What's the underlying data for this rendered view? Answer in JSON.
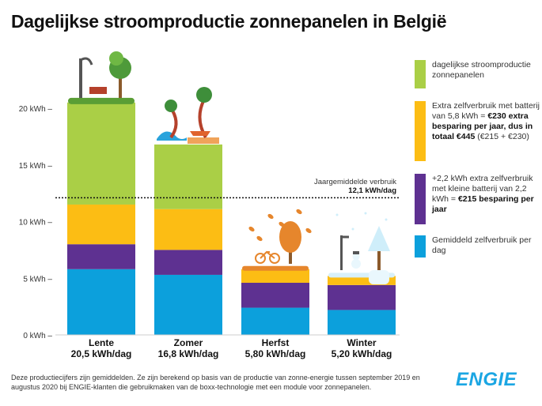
{
  "title": "Dagelijkse stroomproductie zonnepanelen in België",
  "chart_data": {
    "type": "bar",
    "stacked": true,
    "title": "Dagelijkse stroomproductie zonnepanelen in België",
    "ylim": [
      0,
      22
    ],
    "yticks": [
      0,
      5,
      10,
      15,
      20
    ],
    "ytick_labels": [
      "0 kWh –",
      "5 kWh –",
      "10 kWh –",
      "15 kWh –",
      "20 kWh –"
    ],
    "categories": [
      "Lente",
      "Zomer",
      "Herfst",
      "Winter"
    ],
    "category_totals": [
      "20,5 kWh/dag",
      "16,8 kWh/dag",
      "5,80 kWh/dag",
      "5,20 kWh/dag"
    ],
    "series": [
      {
        "name": "Gemiddeld zelfverbruik per dag",
        "color": "#0ca0dc",
        "values": [
          5.8,
          5.3,
          2.4,
          2.2
        ]
      },
      {
        "name": "+2,2 kWh extra zelfverbruik met kleine batterij",
        "color": "#5e3191",
        "values": [
          2.2,
          2.2,
          2.2,
          2.2
        ]
      },
      {
        "name": "Extra zelfverbruik met batterij van 5,8 kWh",
        "color": "#fcbd14",
        "values": [
          3.5,
          3.6,
          1.2,
          0.8
        ]
      },
      {
        "name": "dagelijkse stroomproductie zonnepanelen",
        "color": "#aacf46",
        "values": [
          9.0,
          5.7,
          0,
          0
        ]
      }
    ],
    "average_line": {
      "value": 12.1,
      "label": "Jaargemiddelde verbruik",
      "value_label": "12,1 kWh/dag"
    }
  },
  "legend": [
    {
      "color": "#aacf46",
      "text": "dagelijkse stroomproductie zonnepanelen",
      "bold": ""
    },
    {
      "color": "#fcbd14",
      "text": "Extra zelfverbruik met batterij van 5,8 kWh = ",
      "bold": "€230 extra besparing per jaar, dus in totaal €445",
      "after": " (€215 + €230)"
    },
    {
      "color": "#5e3191",
      "text": "+2,2 kWh extra zelfverbruik met kleine batterij van 2,2 kWh = ",
      "bold": "€215 besparing per jaar",
      "after": ""
    },
    {
      "color": "#0ca0dc",
      "text": "Gemiddeld zelfverbruik per dag",
      "bold": "",
      "after": ""
    }
  ],
  "footnote": "Deze productiecijfers zijn gemiddelden. Ze zijn berekend op basis van de productie van zonne-energie tussen september 2019 en augustus 2020 bij ENGIE-klanten die gebruikmaken van de boxx-technologie met een module voor zonnepanelen.",
  "logo": "ENGIE"
}
